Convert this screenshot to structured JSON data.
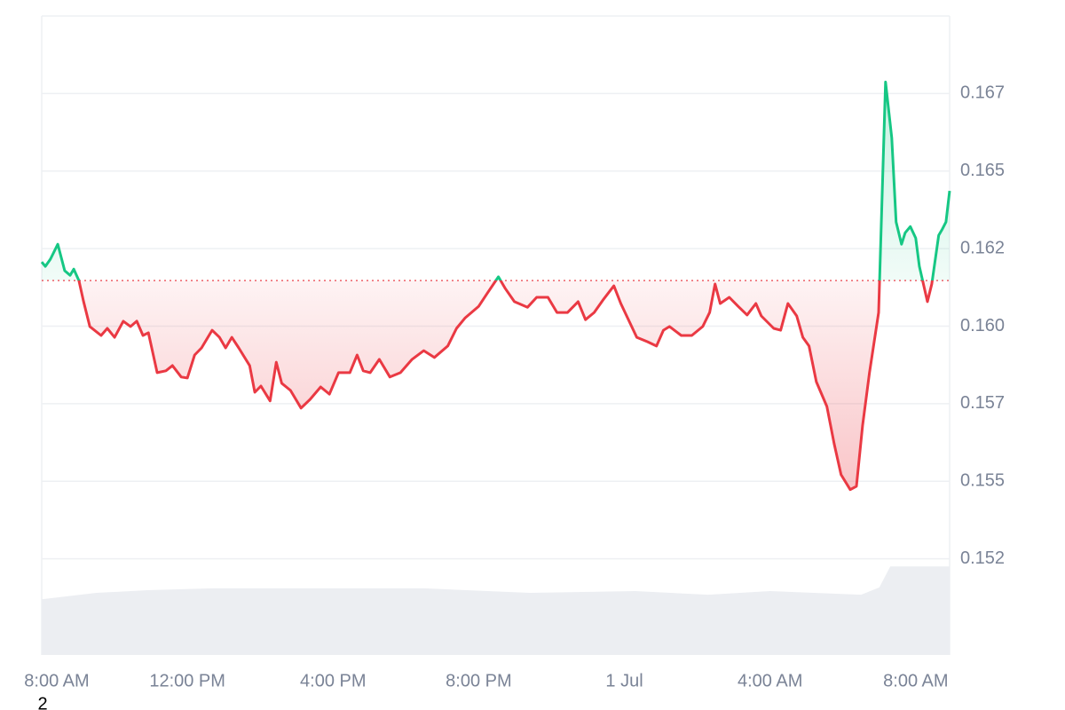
{
  "chart_data": {
    "type": "price-line",
    "x": [
      0,
      0.1,
      0.24,
      0.44,
      0.63,
      0.78,
      0.88,
      1.02,
      1.15,
      1.32,
      1.63,
      1.8,
      2.0,
      2.24,
      2.44,
      2.61,
      2.78,
      2.93,
      3.17,
      3.41,
      3.59,
      3.83,
      4.0,
      4.2,
      4.39,
      4.68,
      4.88,
      5.05,
      5.22,
      5.41,
      5.71,
      5.85,
      6.02,
      6.27,
      6.44,
      6.59,
      6.83,
      7.12,
      7.37,
      7.66,
      7.9,
      8.15,
      8.46,
      8.66,
      8.83,
      9.02,
      9.27,
      9.56,
      9.85,
      10.17,
      10.49,
      10.78,
      11.15,
      11.39,
      11.63,
      12.0,
      12.24,
      12.54,
      12.73,
      12.98,
      13.34,
      13.59,
      13.9,
      14.15,
      14.44,
      14.73,
      14.93,
      15.17,
      15.41,
      15.71,
      15.9,
      16.34,
      16.63,
      16.88,
      17.07,
      17.24,
      17.56,
      17.85,
      18.15,
      18.34,
      18.49,
      18.63,
      18.88,
      19.12,
      19.37,
      19.61,
      19.76,
      20.1,
      20.29,
      20.49,
      20.73,
      20.9,
      21.07,
      21.27,
      21.56,
      21.76,
      21.95,
      22.2,
      22.37,
      22.54,
      22.73,
      22.98,
      23.17,
      23.34,
      23.46,
      23.61,
      23.71,
      23.85,
      24.0,
      24.1,
      24.32,
      24.44,
      24.63,
      24.73,
      24.83,
      24.93
    ],
    "series": [
      {
        "values": [
          0.16207,
          0.16193,
          0.16216,
          0.16264,
          0.16179,
          0.16164,
          0.16184,
          0.16147,
          0.16079,
          0.15999,
          0.1597,
          0.15993,
          0.15964,
          0.16016,
          0.15999,
          0.16016,
          0.1597,
          0.15979,
          0.1585,
          0.15856,
          0.15873,
          0.15836,
          0.15833,
          0.15907,
          0.1593,
          0.15987,
          0.15964,
          0.1593,
          0.15964,
          0.1593,
          0.15873,
          0.15787,
          0.15807,
          0.15759,
          0.15884,
          0.15816,
          0.15793,
          0.15736,
          0.15764,
          0.15804,
          0.15781,
          0.1585,
          0.1585,
          0.15907,
          0.15856,
          0.1585,
          0.15893,
          0.15836,
          0.1585,
          0.15893,
          0.15921,
          0.15899,
          0.15936,
          0.15993,
          0.16027,
          0.16064,
          0.16107,
          0.16159,
          0.16121,
          0.16079,
          0.16061,
          0.16093,
          0.16093,
          0.16044,
          0.16044,
          0.16079,
          0.16021,
          0.16044,
          0.16084,
          0.1613,
          0.16073,
          0.15964,
          0.1595,
          0.15936,
          0.15987,
          0.15999,
          0.1597,
          0.1597,
          0.15999,
          0.16044,
          0.16136,
          0.16073,
          0.16093,
          0.16064,
          0.16036,
          0.16073,
          0.16033,
          0.15993,
          0.15987,
          0.16073,
          0.16033,
          0.15964,
          0.15936,
          0.15821,
          0.15741,
          0.15621,
          0.15521,
          0.15473,
          0.15484,
          0.15679,
          0.1585,
          0.16044,
          0.16787,
          0.16607,
          0.16336,
          0.16264,
          0.16301,
          0.16321,
          0.16284,
          0.16193,
          0.16079,
          0.16136,
          0.16293,
          0.16313,
          0.16336,
          0.16436
        ]
      }
    ],
    "baseline": 0.16147,
    "up_color": "#16c784",
    "down_color": "#ea3943",
    "volume": {
      "axis": "y2",
      "color": "#eceef2",
      "x": [
        0,
        1.5,
        2.9,
        4.7,
        10.5,
        13.4,
        16.3,
        18.3,
        20.0,
        22.5,
        23.0,
        23.3,
        24.93
      ],
      "values": [
        61,
        68,
        71,
        73,
        73,
        68,
        70,
        66,
        70,
        66,
        74,
        97,
        97
      ]
    },
    "xlim": [
      0,
      24.93
    ],
    "xticks": [
      {
        "value": 0,
        "label": "8:00 AM"
      },
      {
        "value": 4,
        "label": "12:00 PM"
      },
      {
        "value": 8,
        "label": "4:00 PM"
      },
      {
        "value": 12,
        "label": "8:00 PM"
      },
      {
        "value": 16,
        "label": "1 Jul"
      },
      {
        "value": 20,
        "label": "4:00 AM"
      },
      {
        "value": 24,
        "label": "8:00 AM"
      }
    ],
    "ylim": [
      0.1494,
      0.17
    ],
    "yticks": [
      {
        "value": 0.1525,
        "label": "0.152"
      },
      0.155,
      {
        "value": 0.1575,
        "label": "0.157"
      },
      {
        "value": 0.16,
        "label": "0.160"
      },
      {
        "value": 0.1625,
        "label": "0.162"
      },
      0.165,
      {
        "value": 0.1675,
        "label": "0.167"
      }
    ],
    "y2lim": [
      0,
      700
    ],
    "grid": true,
    "footnote": "2"
  }
}
